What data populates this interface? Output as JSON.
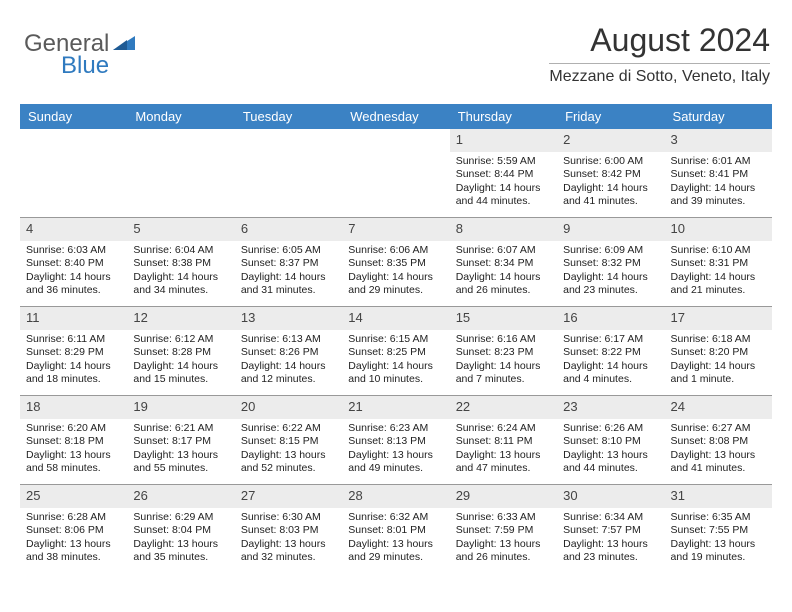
{
  "brand": {
    "part1": "General",
    "part2": "Blue"
  },
  "header": {
    "title": "August 2024",
    "location": "Mezzane di Sotto, Veneto, Italy"
  },
  "colors": {
    "header_bg": "#3b82c4",
    "header_text": "#ffffff",
    "daynum_bg": "#ececec",
    "border": "#999999",
    "brand_gray": "#5a5a5a",
    "brand_blue": "#2f7abf"
  },
  "day_names": [
    "Sunday",
    "Monday",
    "Tuesday",
    "Wednesday",
    "Thursday",
    "Friday",
    "Saturday"
  ],
  "weeks": [
    [
      null,
      null,
      null,
      null,
      {
        "n": "1",
        "sr": "Sunrise: 5:59 AM",
        "ss": "Sunset: 8:44 PM",
        "dl1": "Daylight: 14 hours",
        "dl2": "and 44 minutes."
      },
      {
        "n": "2",
        "sr": "Sunrise: 6:00 AM",
        "ss": "Sunset: 8:42 PM",
        "dl1": "Daylight: 14 hours",
        "dl2": "and 41 minutes."
      },
      {
        "n": "3",
        "sr": "Sunrise: 6:01 AM",
        "ss": "Sunset: 8:41 PM",
        "dl1": "Daylight: 14 hours",
        "dl2": "and 39 minutes."
      }
    ],
    [
      {
        "n": "4",
        "sr": "Sunrise: 6:03 AM",
        "ss": "Sunset: 8:40 PM",
        "dl1": "Daylight: 14 hours",
        "dl2": "and 36 minutes."
      },
      {
        "n": "5",
        "sr": "Sunrise: 6:04 AM",
        "ss": "Sunset: 8:38 PM",
        "dl1": "Daylight: 14 hours",
        "dl2": "and 34 minutes."
      },
      {
        "n": "6",
        "sr": "Sunrise: 6:05 AM",
        "ss": "Sunset: 8:37 PM",
        "dl1": "Daylight: 14 hours",
        "dl2": "and 31 minutes."
      },
      {
        "n": "7",
        "sr": "Sunrise: 6:06 AM",
        "ss": "Sunset: 8:35 PM",
        "dl1": "Daylight: 14 hours",
        "dl2": "and 29 minutes."
      },
      {
        "n": "8",
        "sr": "Sunrise: 6:07 AM",
        "ss": "Sunset: 8:34 PM",
        "dl1": "Daylight: 14 hours",
        "dl2": "and 26 minutes."
      },
      {
        "n": "9",
        "sr": "Sunrise: 6:09 AM",
        "ss": "Sunset: 8:32 PM",
        "dl1": "Daylight: 14 hours",
        "dl2": "and 23 minutes."
      },
      {
        "n": "10",
        "sr": "Sunrise: 6:10 AM",
        "ss": "Sunset: 8:31 PM",
        "dl1": "Daylight: 14 hours",
        "dl2": "and 21 minutes."
      }
    ],
    [
      {
        "n": "11",
        "sr": "Sunrise: 6:11 AM",
        "ss": "Sunset: 8:29 PM",
        "dl1": "Daylight: 14 hours",
        "dl2": "and 18 minutes."
      },
      {
        "n": "12",
        "sr": "Sunrise: 6:12 AM",
        "ss": "Sunset: 8:28 PM",
        "dl1": "Daylight: 14 hours",
        "dl2": "and 15 minutes."
      },
      {
        "n": "13",
        "sr": "Sunrise: 6:13 AM",
        "ss": "Sunset: 8:26 PM",
        "dl1": "Daylight: 14 hours",
        "dl2": "and 12 minutes."
      },
      {
        "n": "14",
        "sr": "Sunrise: 6:15 AM",
        "ss": "Sunset: 8:25 PM",
        "dl1": "Daylight: 14 hours",
        "dl2": "and 10 minutes."
      },
      {
        "n": "15",
        "sr": "Sunrise: 6:16 AM",
        "ss": "Sunset: 8:23 PM",
        "dl1": "Daylight: 14 hours",
        "dl2": "and 7 minutes."
      },
      {
        "n": "16",
        "sr": "Sunrise: 6:17 AM",
        "ss": "Sunset: 8:22 PM",
        "dl1": "Daylight: 14 hours",
        "dl2": "and 4 minutes."
      },
      {
        "n": "17",
        "sr": "Sunrise: 6:18 AM",
        "ss": "Sunset: 8:20 PM",
        "dl1": "Daylight: 14 hours",
        "dl2": "and 1 minute."
      }
    ],
    [
      {
        "n": "18",
        "sr": "Sunrise: 6:20 AM",
        "ss": "Sunset: 8:18 PM",
        "dl1": "Daylight: 13 hours",
        "dl2": "and 58 minutes."
      },
      {
        "n": "19",
        "sr": "Sunrise: 6:21 AM",
        "ss": "Sunset: 8:17 PM",
        "dl1": "Daylight: 13 hours",
        "dl2": "and 55 minutes."
      },
      {
        "n": "20",
        "sr": "Sunrise: 6:22 AM",
        "ss": "Sunset: 8:15 PM",
        "dl1": "Daylight: 13 hours",
        "dl2": "and 52 minutes."
      },
      {
        "n": "21",
        "sr": "Sunrise: 6:23 AM",
        "ss": "Sunset: 8:13 PM",
        "dl1": "Daylight: 13 hours",
        "dl2": "and 49 minutes."
      },
      {
        "n": "22",
        "sr": "Sunrise: 6:24 AM",
        "ss": "Sunset: 8:11 PM",
        "dl1": "Daylight: 13 hours",
        "dl2": "and 47 minutes."
      },
      {
        "n": "23",
        "sr": "Sunrise: 6:26 AM",
        "ss": "Sunset: 8:10 PM",
        "dl1": "Daylight: 13 hours",
        "dl2": "and 44 minutes."
      },
      {
        "n": "24",
        "sr": "Sunrise: 6:27 AM",
        "ss": "Sunset: 8:08 PM",
        "dl1": "Daylight: 13 hours",
        "dl2": "and 41 minutes."
      }
    ],
    [
      {
        "n": "25",
        "sr": "Sunrise: 6:28 AM",
        "ss": "Sunset: 8:06 PM",
        "dl1": "Daylight: 13 hours",
        "dl2": "and 38 minutes."
      },
      {
        "n": "26",
        "sr": "Sunrise: 6:29 AM",
        "ss": "Sunset: 8:04 PM",
        "dl1": "Daylight: 13 hours",
        "dl2": "and 35 minutes."
      },
      {
        "n": "27",
        "sr": "Sunrise: 6:30 AM",
        "ss": "Sunset: 8:03 PM",
        "dl1": "Daylight: 13 hours",
        "dl2": "and 32 minutes."
      },
      {
        "n": "28",
        "sr": "Sunrise: 6:32 AM",
        "ss": "Sunset: 8:01 PM",
        "dl1": "Daylight: 13 hours",
        "dl2": "and 29 minutes."
      },
      {
        "n": "29",
        "sr": "Sunrise: 6:33 AM",
        "ss": "Sunset: 7:59 PM",
        "dl1": "Daylight: 13 hours",
        "dl2": "and 26 minutes."
      },
      {
        "n": "30",
        "sr": "Sunrise: 6:34 AM",
        "ss": "Sunset: 7:57 PM",
        "dl1": "Daylight: 13 hours",
        "dl2": "and 23 minutes."
      },
      {
        "n": "31",
        "sr": "Sunrise: 6:35 AM",
        "ss": "Sunset: 7:55 PM",
        "dl1": "Daylight: 13 hours",
        "dl2": "and 19 minutes."
      }
    ]
  ]
}
